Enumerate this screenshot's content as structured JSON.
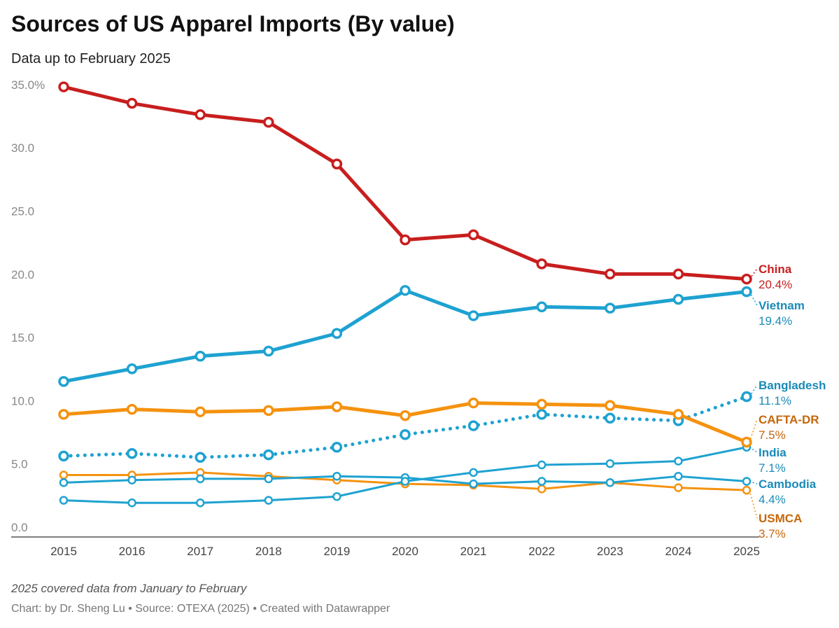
{
  "title": "Sources of US Apparel Imports (By value)",
  "subtitle": "Data up to February 2025",
  "note": "2025 covered data from January to February",
  "footer": "Chart: by Dr. Sheng Lu • Source: OTEXA (2025) • Created with Datawrapper",
  "chart_data": {
    "type": "line",
    "title": "Sources of US Apparel Imports (By value)",
    "x": [
      2015,
      2016,
      2017,
      2018,
      2019,
      2020,
      2021,
      2022,
      2023,
      2024,
      2025
    ],
    "ylim": [
      0,
      35
    ],
    "yticks": [
      0,
      5,
      10,
      15,
      20,
      25,
      30,
      35
    ],
    "ytick_labels": [
      "0.0",
      "5.0",
      "10.0",
      "15.0",
      "20.0",
      "25.0",
      "30.0",
      "35.0%"
    ],
    "grid": false,
    "legend": "direct labels at right",
    "series": [
      {
        "name": "China",
        "label_value": "20.4%",
        "color": "#c81e1e",
        "label_color": "#c81e1e",
        "style": "thick",
        "values": [
          35.6,
          34.3,
          33.4,
          32.8,
          29.5,
          23.5,
          23.9,
          21.6,
          20.8,
          20.8,
          20.4
        ]
      },
      {
        "name": "Vietnam",
        "label_value": "19.4%",
        "color": "#1ea2d1",
        "label_color": "#1a8bb8",
        "style": "thick",
        "values": [
          12.3,
          13.3,
          14.3,
          14.7,
          16.1,
          19.5,
          17.5,
          18.2,
          18.1,
          18.8,
          19.4
        ]
      },
      {
        "name": "Bangladesh",
        "label_value": "11.1%",
        "color": "#1ea2d1",
        "label_color": "#1a8bb8",
        "style": "dotted",
        "values": [
          6.4,
          6.6,
          6.3,
          6.5,
          7.1,
          8.1,
          8.8,
          9.7,
          9.4,
          9.2,
          11.1
        ]
      },
      {
        "name": "CAFTA-DR",
        "label_value": "7.5%",
        "color": "#f5920f",
        "label_color": "#c5670a",
        "style": "thick",
        "values": [
          9.7,
          10.1,
          9.9,
          10.0,
          10.3,
          9.6,
          10.6,
          10.5,
          10.4,
          9.7,
          7.5
        ]
      },
      {
        "name": "India",
        "label_value": "7.1%",
        "color": "#1ea2d1",
        "label_color": "#1a8bb8",
        "style": "thin",
        "values": [
          2.9,
          2.7,
          2.7,
          2.9,
          3.2,
          4.4,
          5.1,
          5.7,
          5.8,
          6.0,
          7.1
        ]
      },
      {
        "name": "Cambodia",
        "label_value": "4.4%",
        "color": "#1ea2d1",
        "label_color": "#1a8bb8",
        "style": "thin",
        "values": [
          4.3,
          4.5,
          4.6,
          4.6,
          4.8,
          4.7,
          4.2,
          4.4,
          4.3,
          4.8,
          4.4
        ]
      },
      {
        "name": "USMCA",
        "label_value": "3.7%",
        "color": "#f5920f",
        "label_color": "#c5670a",
        "style": "thin",
        "values": [
          4.9,
          4.9,
          5.1,
          4.8,
          4.5,
          4.2,
          4.1,
          3.8,
          4.3,
          3.9,
          3.7
        ]
      }
    ]
  }
}
